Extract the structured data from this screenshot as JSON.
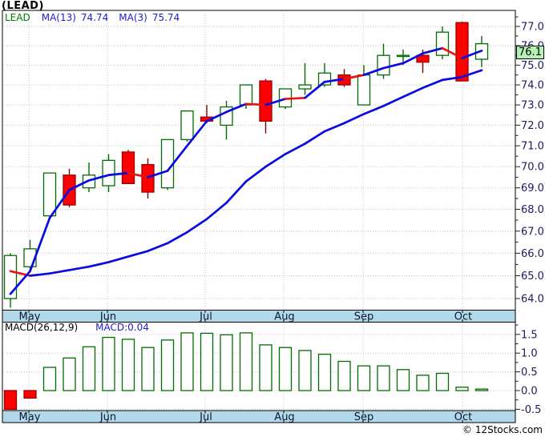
{
  "title": "(LEAD)",
  "legend": {
    "symbol": "LEAD",
    "ma13_label": "MA(13)",
    "ma13_value": "74.74",
    "ma3_label": "MA(3)",
    "ma3_value": "75.74"
  },
  "price_marker": "76.1",
  "macd_header": {
    "params": "MACD(26,12,9)",
    "current": "MACD:0.04"
  },
  "footer": "© 12Stocks.com",
  "axes": {
    "price_labels": [
      "77.0",
      "76.0",
      "75.0",
      "74.0",
      "73.0",
      "72.0",
      "71.0",
      "70.0",
      "69.0",
      "68.0",
      "67.0",
      "66.0",
      "65.0",
      "64.0"
    ],
    "macd_labels": [
      "1.5",
      "1.0",
      "0.5",
      "0.0",
      "-0.5"
    ],
    "month_labels": [
      "May",
      "Jun",
      "Jul",
      "Aug",
      "Sep",
      "Oct"
    ]
  },
  "colors": {
    "candle_up": "#046a04",
    "candle_down_fill": "#fd0000",
    "candle_down_stroke": "#a00000",
    "candle_down_wick": "#7c0404",
    "ma_line": "#0a0ae0",
    "ma_down": "#ee1111",
    "grid": "#c5c5c5",
    "axis_band": "#b2d9e9",
    "axis_text": "#1b1b5e",
    "month_text": "#0b1530",
    "marker_bg": "#b6f2b6",
    "legend_symbol": "#007800",
    "legend_value": "#2020cc",
    "border": "#000000"
  },
  "chart_data": [
    {
      "type": "candlestick",
      "symbol": "LEAD",
      "period": "weekly",
      "y_scale": "log",
      "ylim": [
        64,
        77
      ],
      "x_months": [
        "May",
        "Jun",
        "Jul",
        "Aug",
        "Sep",
        "Oct"
      ],
      "last_price": 76.1,
      "candles": [
        [
          64.0,
          66.0,
          63.6,
          65.9
        ],
        [
          65.4,
          66.6,
          65.2,
          66.2
        ],
        [
          67.7,
          69.7,
          67.6,
          69.7
        ],
        [
          69.6,
          69.9,
          68.1,
          68.2
        ],
        [
          69.0,
          70.2,
          68.8,
          69.6
        ],
        [
          69.1,
          70.6,
          68.8,
          70.3
        ],
        [
          70.7,
          70.8,
          69.2,
          69.2
        ],
        [
          70.1,
          70.4,
          68.5,
          68.8
        ],
        [
          69.0,
          71.3,
          68.9,
          71.3
        ],
        [
          71.3,
          72.7,
          71.2,
          72.7
        ],
        [
          72.4,
          73.0,
          72.1,
          72.2
        ],
        [
          72.0,
          73.2,
          71.3,
          72.9
        ],
        [
          73.0,
          74.0,
          72.8,
          74.0
        ],
        [
          74.2,
          74.3,
          71.6,
          72.2
        ],
        [
          72.9,
          73.8,
          72.8,
          73.8
        ],
        [
          73.8,
          75.1,
          73.5,
          74.0
        ],
        [
          74.0,
          75.1,
          73.9,
          74.6
        ],
        [
          74.5,
          74.8,
          73.9,
          74.0
        ],
        [
          73.0,
          75.0,
          73.0,
          74.5
        ],
        [
          74.5,
          76.1,
          74.3,
          75.5
        ],
        [
          75.45,
          75.8,
          75.0,
          75.5
        ],
        [
          75.5,
          75.8,
          74.6,
          75.15
        ],
        [
          75.5,
          77.0,
          75.3,
          76.7
        ],
        [
          77.2,
          77.25,
          74.2,
          74.2
        ],
        [
          75.3,
          76.5,
          74.9,
          76.1
        ]
      ],
      "series": [
        {
          "name": "MA(3)",
          "last": 75.74,
          "values": [
            64.2,
            65.2,
            67.6,
            68.9,
            69.35,
            69.6,
            69.7,
            69.5,
            69.8,
            71.0,
            72.2,
            72.65,
            73.05,
            73.0,
            73.3,
            73.35,
            74.15,
            74.3,
            74.5,
            74.85,
            75.1,
            75.6,
            75.87,
            75.36,
            75.74
          ],
          "down_segments": [
            [
              6,
              7
            ],
            [
              12,
              13
            ],
            [
              14,
              15
            ],
            [
              17,
              18
            ],
            [
              22,
              23
            ]
          ]
        },
        {
          "name": "MA(13)",
          "last": 74.74,
          "values": [
            65.2,
            65.0,
            65.1,
            65.25,
            65.4,
            65.6,
            65.85,
            66.1,
            66.45,
            66.95,
            67.55,
            68.3,
            69.3,
            70.0,
            70.6,
            71.1,
            71.7,
            72.1,
            72.55,
            72.95,
            73.4,
            73.85,
            74.25,
            74.4,
            74.74
          ],
          "down_segments": [
            [
              0,
              1
            ]
          ]
        }
      ]
    },
    {
      "type": "bar",
      "name": "MACD(26,12,9) histogram",
      "ylim": [
        -0.75,
        1.75
      ],
      "y_ticks": [
        1.5,
        1.0,
        0.5,
        0.0,
        -0.5
      ],
      "current": 0.04,
      "values": [
        -0.5,
        -0.2,
        0.62,
        0.87,
        1.17,
        1.42,
        1.37,
        1.15,
        1.35,
        1.54,
        1.53,
        1.49,
        1.54,
        1.22,
        1.15,
        1.07,
        0.97,
        0.78,
        0.66,
        0.66,
        0.56,
        0.41,
        0.46,
        0.09,
        0.04
      ]
    }
  ]
}
